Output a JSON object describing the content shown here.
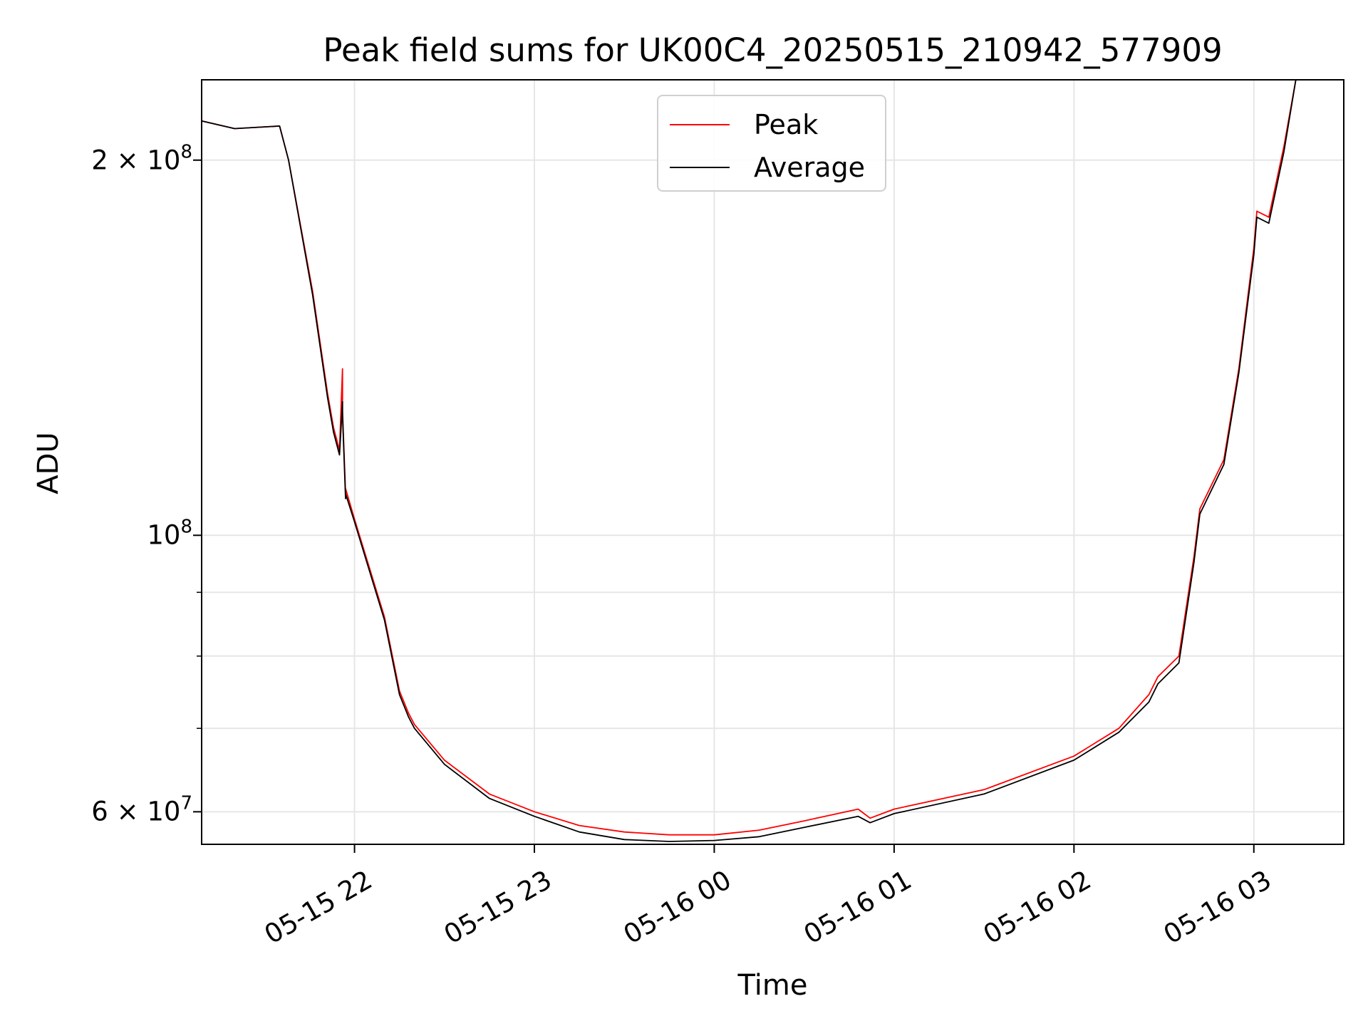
{
  "title": "Peak field sums for UK00C4_20250515_210942_577909",
  "chart_data": {
    "type": "line",
    "title": "Peak field sums for UK00C4_20250515_210942_577909",
    "xlabel": "Time",
    "ylabel": "ADU",
    "yscale": "log",
    "xlim": [
      "2025-05-15 21:09",
      "2025-05-16 03:30"
    ],
    "ylim": [
      56500000,
      232000000
    ],
    "grid": true,
    "legend_position": "top-center",
    "x_ticks": [
      "2025-05-15 22:00",
      "2025-05-15 23:00",
      "2025-05-16 00:00",
      "2025-05-16 01:00",
      "2025-05-16 02:00",
      "2025-05-16 03:00"
    ],
    "x_tick_labels": [
      "05-15 22",
      "05-15 23",
      "05-16 00",
      "05-16 01",
      "05-16 02",
      "05-16 03"
    ],
    "y_ticks": [
      {
        "value": 200000000,
        "mantissa": "2",
        "exponent": "8"
      },
      {
        "value": 100000000,
        "mantissa": "",
        "exponent": "8"
      },
      {
        "value": 60000000,
        "mantissa": "6",
        "exponent": "7"
      }
    ],
    "y_minor_gridlines": [
      70000000,
      80000000,
      90000000
    ],
    "series": [
      {
        "name": "Peak",
        "color": "#ff0000",
        "x": [
          "2025-05-15 21:09",
          "2025-05-15 21:20",
          "2025-05-15 21:35",
          "2025-05-15 21:38",
          "2025-05-15 21:46",
          "2025-05-15 21:51",
          "2025-05-15 21:53",
          "2025-05-15 21:55",
          "2025-05-15 21:56",
          "2025-05-15 21:56",
          "2025-05-15 21:57",
          "2025-05-15 21:57",
          "2025-05-15 22:00",
          "2025-05-15 22:10",
          "2025-05-15 22:15",
          "2025-05-15 22:18",
          "2025-05-15 22:20",
          "2025-05-15 22:30",
          "2025-05-15 22:45",
          "2025-05-15 23:00",
          "2025-05-15 23:15",
          "2025-05-15 23:30",
          "2025-05-15 23:45",
          "2025-05-16 00:00",
          "2025-05-16 00:15",
          "2025-05-16 00:30",
          "2025-05-16 00:48",
          "2025-05-16 00:52",
          "2025-05-16 01:00",
          "2025-05-16 01:30",
          "2025-05-16 02:00",
          "2025-05-16 02:15",
          "2025-05-16 02:25",
          "2025-05-16 02:28",
          "2025-05-16 02:35",
          "2025-05-16 02:40",
          "2025-05-16 02:42",
          "2025-05-16 02:50",
          "2025-05-16 02:55",
          "2025-05-16 03:00",
          "2025-05-16 03:01",
          "2025-05-16 03:05",
          "2025-05-16 03:10",
          "2025-05-16 03:14"
        ],
        "values": [
          215000000,
          212000000,
          213000000,
          200000000,
          157000000,
          130000000,
          122000000,
          117000000,
          136000000,
          126000000,
          108000000,
          109000000,
          103000000,
          86000000,
          75000000,
          72000000,
          70500000,
          66000000,
          62000000,
          60000000,
          58500000,
          57800000,
          57500000,
          57500000,
          58000000,
          59000000,
          60300000,
          59300000,
          60300000,
          62500000,
          66500000,
          70000000,
          74500000,
          77000000,
          80000000,
          96000000,
          105000000,
          115000000,
          136000000,
          170000000,
          182000000,
          180000000,
          205000000,
          232000000
        ]
      },
      {
        "name": "Average",
        "color": "#000000",
        "x": [
          "2025-05-15 21:09",
          "2025-05-15 21:20",
          "2025-05-15 21:35",
          "2025-05-15 21:38",
          "2025-05-15 21:46",
          "2025-05-15 21:51",
          "2025-05-15 21:53",
          "2025-05-15 21:55",
          "2025-05-15 21:56",
          "2025-05-15 21:56",
          "2025-05-15 21:57",
          "2025-05-15 21:57",
          "2025-05-15 22:00",
          "2025-05-15 22:10",
          "2025-05-15 22:15",
          "2025-05-15 22:18",
          "2025-05-15 22:20",
          "2025-05-15 22:30",
          "2025-05-15 22:45",
          "2025-05-15 23:00",
          "2025-05-15 23:15",
          "2025-05-15 23:30",
          "2025-05-15 23:45",
          "2025-05-16 00:00",
          "2025-05-16 00:15",
          "2025-05-16 00:30",
          "2025-05-16 00:48",
          "2025-05-16 00:52",
          "2025-05-16 01:00",
          "2025-05-16 01:30",
          "2025-05-16 02:00",
          "2025-05-16 02:15",
          "2025-05-16 02:25",
          "2025-05-16 02:28",
          "2025-05-16 02:35",
          "2025-05-16 02:40",
          "2025-05-16 02:42",
          "2025-05-16 02:50",
          "2025-05-16 02:55",
          "2025-05-16 03:00",
          "2025-05-16 03:01",
          "2025-05-16 03:05",
          "2025-05-16 03:10",
          "2025-05-16 03:14"
        ],
        "values": [
          215000000,
          212000000,
          213000000,
          200000000,
          156000000,
          129000000,
          121000000,
          116000000,
          128000000,
          125000000,
          107000000,
          108000000,
          102500000,
          85500000,
          74500000,
          71500000,
          70000000,
          65500000,
          61500000,
          59500000,
          57800000,
          57000000,
          56800000,
          56900000,
          57300000,
          58300000,
          59500000,
          58800000,
          59800000,
          62000000,
          66000000,
          69500000,
          73500000,
          76000000,
          79000000,
          95000000,
          104000000,
          114000000,
          135000000,
          168000000,
          180000000,
          178000000,
          203000000,
          232000000
        ]
      }
    ]
  }
}
